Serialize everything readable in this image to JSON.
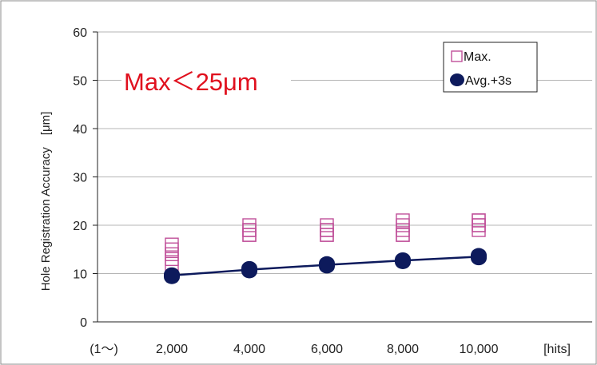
{
  "chart_data": {
    "type": "scatter",
    "title": "",
    "annotation": "Max＜25μm",
    "ylabel": "Hole Registration Accuracy　[μm]",
    "xlabel": "[hits]",
    "x_start_label": "(1～)",
    "ylim": [
      0,
      60
    ],
    "yticks": [
      0,
      10,
      20,
      30,
      40,
      50,
      60
    ],
    "categories": [
      "2,000",
      "4,000",
      "6,000",
      "8,000",
      "10,000"
    ],
    "grid": true,
    "legend_position": "top-right",
    "series": [
      {
        "name": "Max.",
        "marker": "open-square",
        "color": "#c0509a",
        "points": [
          [
            14,
            15,
            16,
            13,
            12
          ],
          [
            18,
            19,
            20,
            19,
            18
          ],
          [
            18,
            19,
            20,
            19,
            18
          ],
          [
            18,
            19,
            21,
            20,
            18
          ],
          [
            19,
            20,
            21,
            20,
            21
          ]
        ]
      },
      {
        "name": "Avg.+3s",
        "marker": "filled-circle",
        "color": "#0d1a5c",
        "line": true,
        "values": [
          9.6,
          10.8,
          11.8,
          12.7,
          13.5
        ],
        "points": [
          [
            9.3,
            9.6,
            9.8
          ],
          [
            10.5,
            10.8,
            11.1
          ],
          [
            11.5,
            11.8,
            12.1
          ],
          [
            12.4,
            12.7,
            12.9
          ],
          [
            13.2,
            13.5,
            13.8
          ]
        ]
      }
    ]
  }
}
